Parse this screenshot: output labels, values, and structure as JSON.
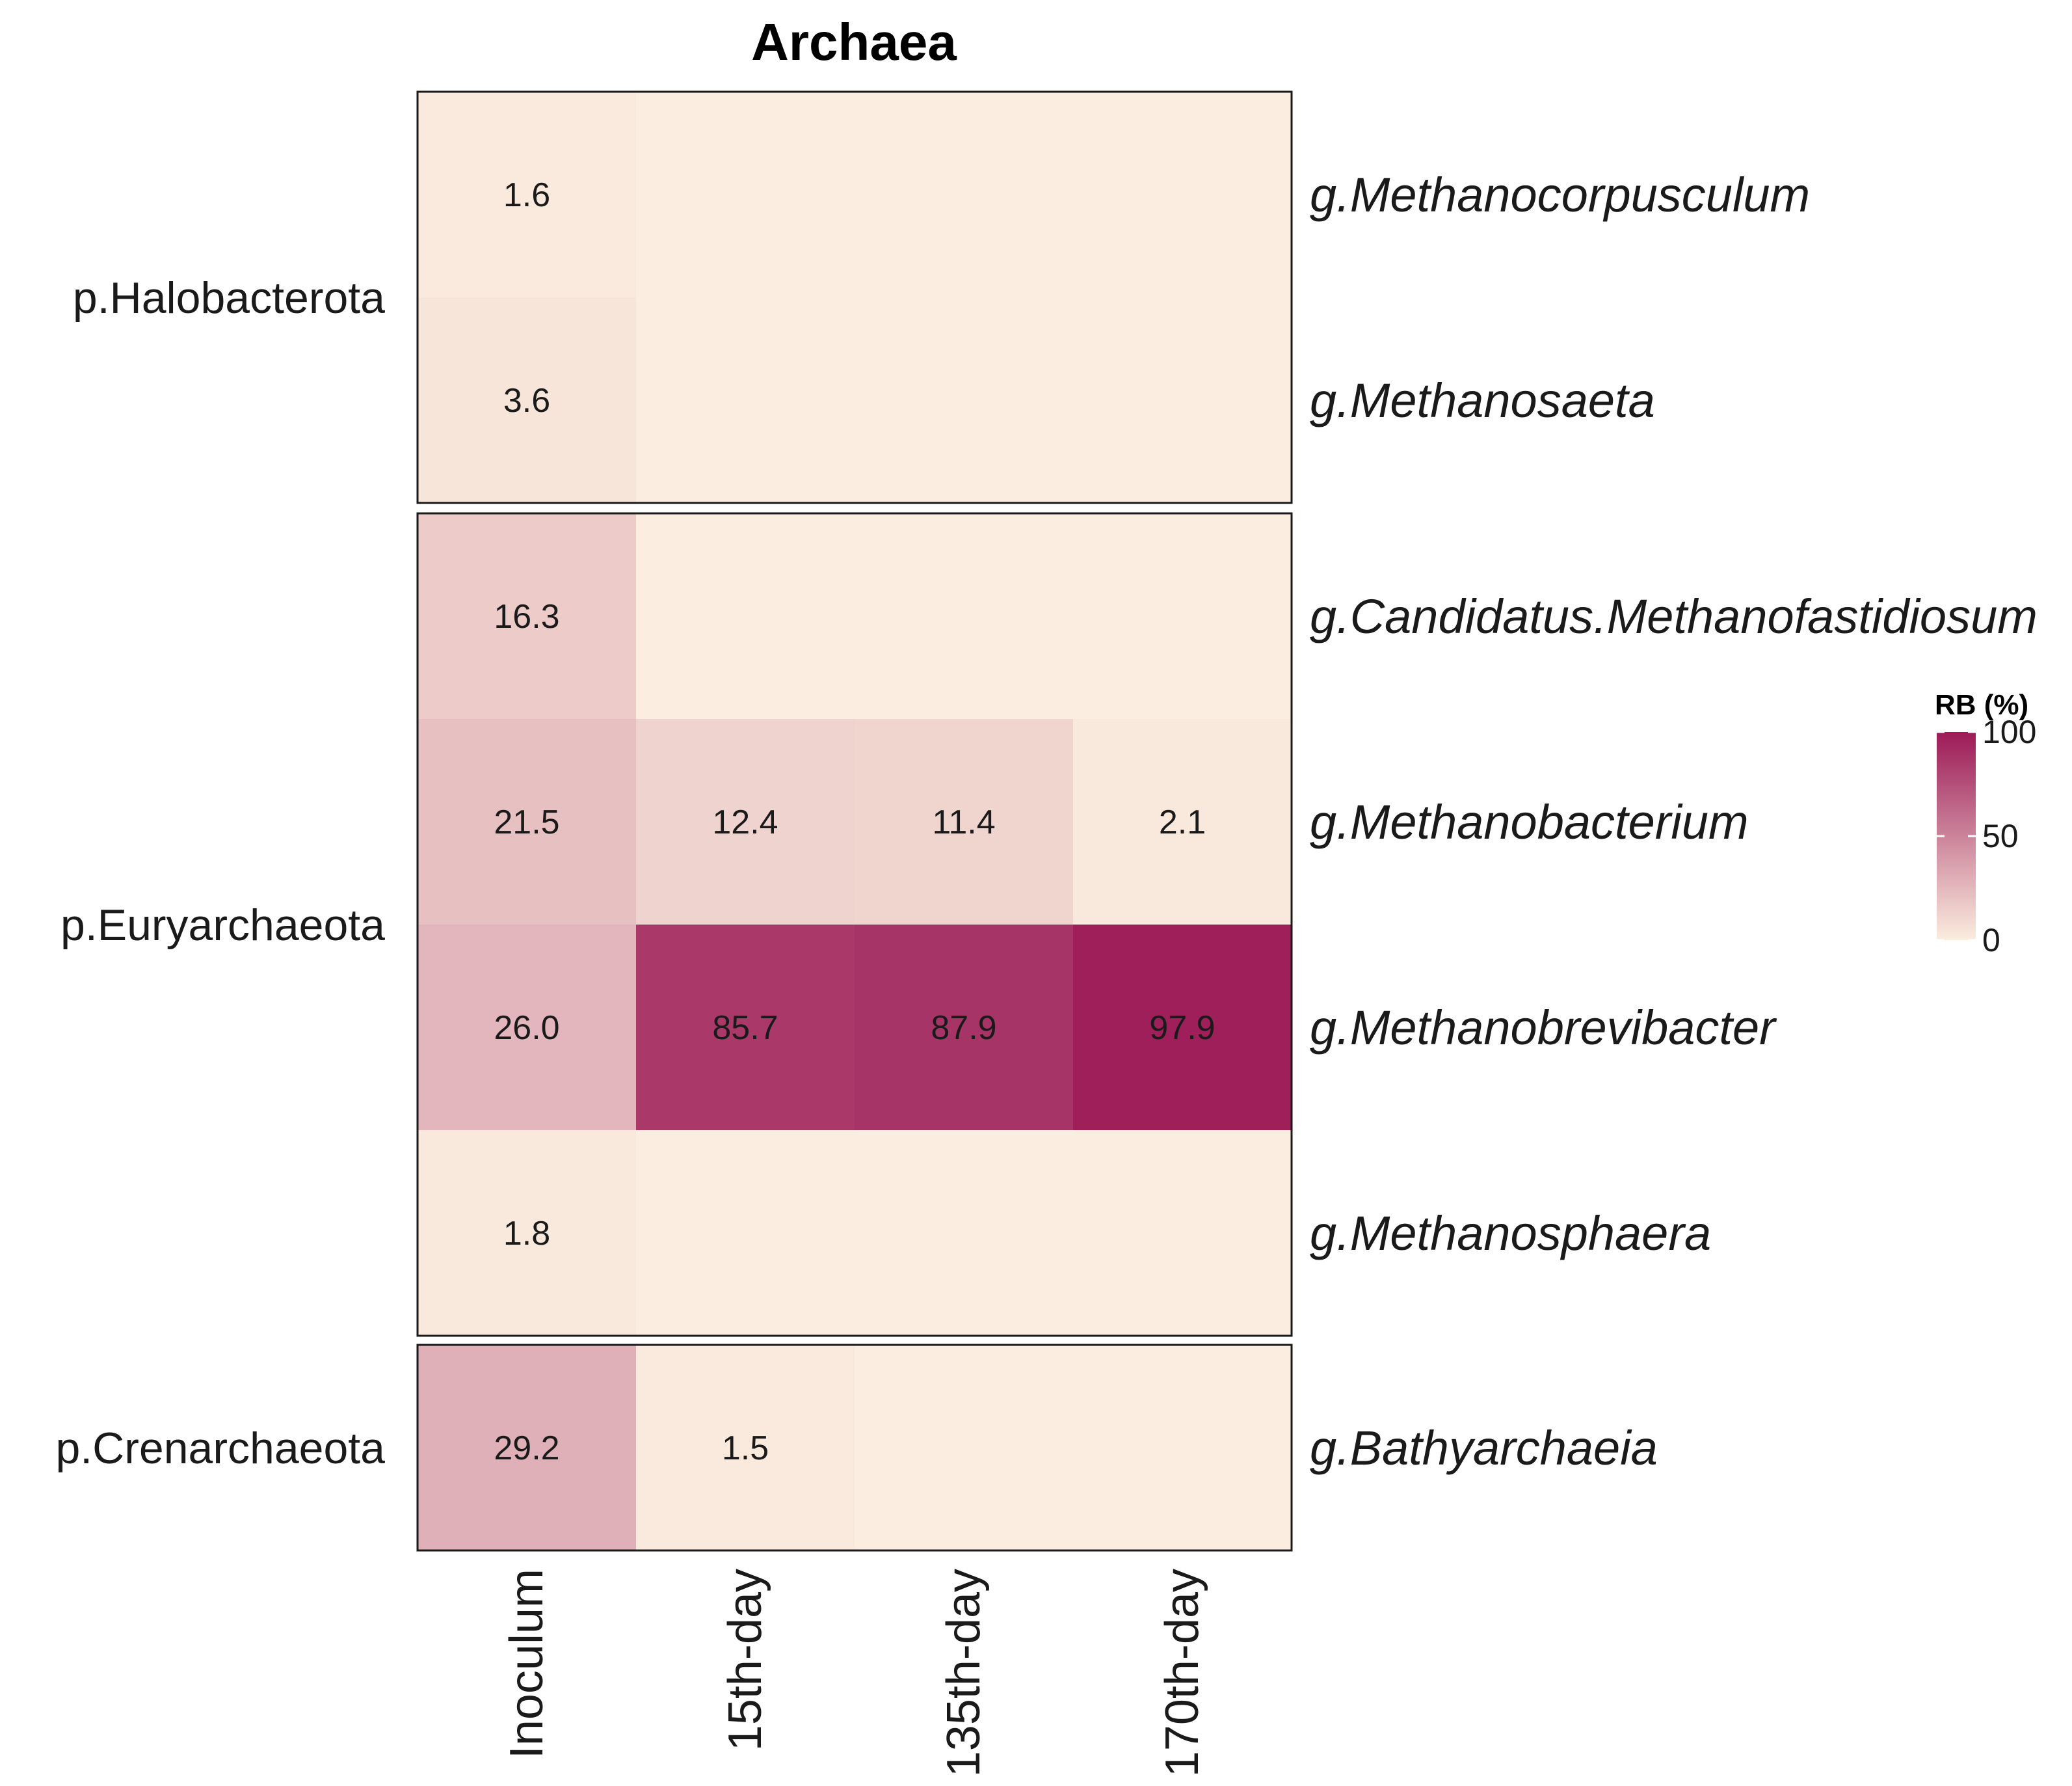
{
  "chart_data": {
    "type": "heatmap",
    "title": "Archaea",
    "columns": [
      "Inoculum",
      "15th-day",
      "135th-day",
      "170th-day"
    ],
    "facets": [
      {
        "phylum": "p.Halobacterota",
        "genera": [
          {
            "name": "g.Methanocorpusculum",
            "values": [
              1.6,
              0,
              0,
              0
            ],
            "labels": [
              "1.6",
              "",
              "",
              ""
            ]
          },
          {
            "name": "g.Methanosaeta",
            "values": [
              3.6,
              0,
              0,
              0
            ],
            "labels": [
              "3.6",
              "",
              "",
              ""
            ]
          }
        ]
      },
      {
        "phylum": "p.Euryarchaeota",
        "genera": [
          {
            "name": "g.Candidatus.Methanofastidiosum",
            "values": [
              16.3,
              0,
              0,
              0
            ],
            "labels": [
              "16.3",
              "",
              "",
              ""
            ]
          },
          {
            "name": "g.Methanobacterium",
            "values": [
              21.5,
              12.4,
              11.4,
              2.1
            ],
            "labels": [
              "21.5",
              "12.4",
              "11.4",
              "2.1"
            ]
          },
          {
            "name": "g.Methanobrevibacter",
            "values": [
              26.0,
              85.7,
              87.9,
              97.9
            ],
            "labels": [
              "26.0",
              "85.7",
              "87.9",
              "97.9"
            ]
          },
          {
            "name": "g.Methanosphaera",
            "values": [
              1.8,
              0,
              0,
              0
            ],
            "labels": [
              "1.8",
              "",
              "",
              ""
            ]
          }
        ]
      },
      {
        "phylum": "p.Crenarchaeota",
        "genera": [
          {
            "name": "g.Bathyarchaeia",
            "values": [
              29.2,
              1.5,
              0,
              0
            ],
            "labels": [
              "29.2",
              "1.5",
              "",
              ""
            ]
          }
        ]
      }
    ],
    "legend": {
      "title": "RB (%)",
      "ticks": [
        "0",
        "50",
        "100"
      ],
      "tick_values": [
        0,
        50,
        100
      ],
      "range": [
        0,
        100
      ],
      "low_color": "#fbeddf",
      "high_color": "#9c1b57"
    }
  }
}
